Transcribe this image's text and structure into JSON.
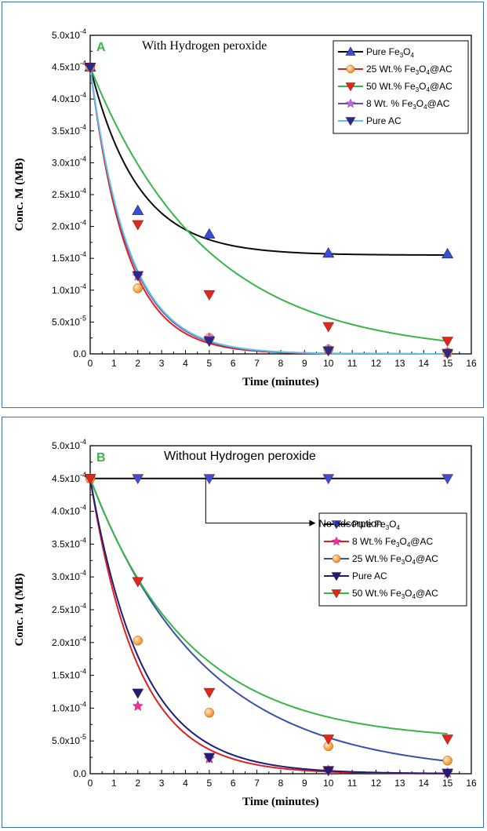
{
  "chart_data": [
    {
      "type": "scatter",
      "panel_letter": "A",
      "title": "With Hydrogen peroxide",
      "xlabel": "Time (minutes)",
      "ylabel": "Conc. M (MB)",
      "xlim": [
        0,
        16
      ],
      "ylim": [
        0,
        0.0005
      ],
      "xticks": [
        "0",
        "1",
        "2",
        "3",
        "4",
        "5",
        "6",
        "7",
        "8",
        "9",
        "10",
        "11",
        "12",
        "13",
        "14",
        "15",
        "16"
      ],
      "yticks": [
        {
          "mant": "0.0",
          "exp": ""
        },
        {
          "mant": "5.0x10",
          "exp": "-5"
        },
        {
          "mant": "1.0x10",
          "exp": "-4"
        },
        {
          "mant": "1.5x10",
          "exp": "-4"
        },
        {
          "mant": "2.0x10",
          "exp": "-4"
        },
        {
          "mant": "2.5x10",
          "exp": "-4"
        },
        {
          "mant": "3.0x10",
          "exp": "-4"
        },
        {
          "mant": "3.5x10",
          "exp": "-4"
        },
        {
          "mant": "4.0x10",
          "exp": "-4"
        },
        {
          "mant": "4.5x10",
          "exp": "-4"
        },
        {
          "mant": "5.0x10",
          "exp": "-4"
        }
      ],
      "legend_position": "top-right",
      "series": [
        {
          "name": "Pure Fe3O4",
          "color": "#0a0a0a",
          "marker_color": "#3a4fd6",
          "marker": "triangle-up",
          "x": [
            0,
            2,
            5,
            10,
            15
          ],
          "y": [
            0.00045,
            0.000225,
            0.000188,
            0.000158,
            0.000157
          ],
          "fit": {
            "c": 0.000155,
            "k": 0.5
          }
        },
        {
          "name": "25 Wt.% Fe3O4@AC",
          "color": "#e02020",
          "marker_color": "#f08a24",
          "marker": "circle",
          "x": [
            0,
            2,
            5,
            10,
            15
          ],
          "y": [
            0.00045,
            0.000103,
            2.5e-05,
            7e-06,
            2e-06
          ],
          "fit": {
            "c": 0,
            "k": 0.66
          }
        },
        {
          "name": "50 Wt.% Fe3O4@AC",
          "color": "#38b54a",
          "marker_color": "#e0271c",
          "marker": "triangle-down",
          "x": [
            0,
            2,
            5,
            10,
            15
          ],
          "y": [
            0.00045,
            0.000203,
            9.3e-05,
            4.3e-05,
            2e-05
          ],
          "fit": {
            "c": 0,
            "k": 0.207
          }
        },
        {
          "name": "8 Wt. % Fe3O4@AC",
          "color": "#6b4ba8",
          "marker_color": "#c06ad8",
          "marker": "star",
          "x": [
            0,
            2,
            5,
            10,
            15
          ],
          "y": [
            0.00045,
            0.000122,
            2.5e-05,
            7e-06,
            2e-06
          ],
          "fit": {
            "c": 0,
            "k": 0.63
          }
        },
        {
          "name": "Pure AC",
          "color": "#5fc3e8",
          "marker_color": "#2a2a8c",
          "marker": "triangle-down",
          "x": [
            0,
            2,
            5,
            10,
            15
          ],
          "y": [
            0.00045,
            0.000123,
            2e-05,
            5e-06,
            1e-06
          ],
          "fit": {
            "c": 0,
            "k": 0.62
          }
        }
      ],
      "legend": [
        {
          "label": "Pure Fe",
          "s1": "3",
          "mid": "O",
          "s2": "4",
          "tail": ""
        },
        {
          "label": "25 Wt.% Fe",
          "s1": "3",
          "mid": "O",
          "s2": "4",
          "tail": "@AC"
        },
        {
          "label": "50 Wt.% Fe",
          "s1": "3",
          "mid": "O",
          "s2": "4",
          "tail": "@AC"
        },
        {
          "label": "8 Wt. % Fe",
          "s1": "3",
          "mid": "O",
          "s2": "4",
          "tail": "@AC"
        },
        {
          "label": "Pure AC",
          "s1": "",
          "mid": "",
          "s2": "",
          "tail": ""
        }
      ]
    },
    {
      "type": "scatter",
      "panel_letter": "B",
      "title": "Without Hydrogen peroxide",
      "xlabel": "Time (minutes)",
      "ylabel": "Conc. M (MB)",
      "xlim": [
        0,
        16
      ],
      "ylim": [
        0,
        0.0005
      ],
      "xticks": [
        "0",
        "1",
        "2",
        "3",
        "4",
        "5",
        "6",
        "7",
        "8",
        "9",
        "10",
        "11",
        "12",
        "13",
        "14",
        "15",
        "16"
      ],
      "yticks": [
        {
          "mant": "0.0",
          "exp": ""
        },
        {
          "mant": "5.0x10",
          "exp": "-5"
        },
        {
          "mant": "1.0x10",
          "exp": "-4"
        },
        {
          "mant": "1.5x10",
          "exp": "-4"
        },
        {
          "mant": "2.0x10",
          "exp": "-4"
        },
        {
          "mant": "2.5x10",
          "exp": "-4"
        },
        {
          "mant": "3.0x10",
          "exp": "-4"
        },
        {
          "mant": "3.5x10",
          "exp": "-4"
        },
        {
          "mant": "4.0x10",
          "exp": "-4"
        },
        {
          "mant": "4.5x10",
          "exp": "-4"
        },
        {
          "mant": "5.0x10",
          "exp": "-4"
        }
      ],
      "annotation": "No adsorption",
      "legend_position": "right",
      "series": [
        {
          "name": "Pure Fe3O4",
          "color": "#0a0a0a",
          "marker_color": "#3a4fd6",
          "marker": "triangle-down",
          "x": [
            0,
            2,
            5,
            10,
            15
          ],
          "y": [
            0.00045,
            0.00045,
            0.00045,
            0.00045,
            0.00045
          ],
          "fit": {
            "c": 0.00045,
            "k": 0
          }
        },
        {
          "name": "8 Wt.% Fe3O4@AC",
          "color": "#e02020",
          "marker_color": "#f0309a",
          "marker": "star",
          "x": [
            0,
            2,
            5,
            10,
            15
          ],
          "y": [
            0.00045,
            0.000103,
            2.3e-05,
            5e-06,
            1e-06
          ],
          "fit": {
            "c": 0,
            "k": 0.5
          }
        },
        {
          "name": "25 Wt.% Fe3O4@AC",
          "color": "#3a4fa8",
          "marker_color": "#f08a24",
          "marker": "circle",
          "x": [
            0,
            2,
            5,
            10,
            15
          ],
          "y": [
            0.00045,
            0.000203,
            9.3e-05,
            4.2e-05,
            2e-05
          ],
          "fit": {
            "c": 0,
            "k": 0.21
          }
        },
        {
          "name": "Pure AC",
          "color": "#1e1e7a",
          "marker_color": "#1e1e7a",
          "marker": "triangle-down",
          "x": [
            0,
            2,
            5,
            10,
            15
          ],
          "y": [
            0.00045,
            0.000123,
            2.5e-05,
            5e-06,
            1e-06
          ],
          "fit": {
            "c": 0,
            "k": 0.46
          }
        },
        {
          "name": "50 Wt.% Fe3O4@AC",
          "color": "#38b54a",
          "marker_color": "#e0271c",
          "marker": "triangle-down",
          "x": [
            0,
            2,
            5,
            10,
            15
          ],
          "y": [
            0.00045,
            0.000293,
            0.000124,
            5.3e-05,
            5.3e-05
          ],
          "fit": {
            "c": 5e-05,
            "k": 0.24
          }
        }
      ],
      "legend": [
        {
          "label": "Pure Fe",
          "s1": "3",
          "mid": "O",
          "s2": "4",
          "tail": ""
        },
        {
          "label": "8 Wt.% Fe",
          "s1": "3",
          "mid": "O",
          "s2": "4",
          "tail": "@AC"
        },
        {
          "label": "25 Wt.% Fe",
          "s1": "3",
          "mid": "O",
          "s2": "4",
          "tail": "@AC"
        },
        {
          "label": "Pure AC",
          "s1": "",
          "mid": "",
          "s2": "",
          "tail": ""
        },
        {
          "label": "50 Wt.% Fe",
          "s1": "3",
          "mid": "O",
          "s2": "4",
          "tail": "@AC"
        }
      ]
    }
  ]
}
